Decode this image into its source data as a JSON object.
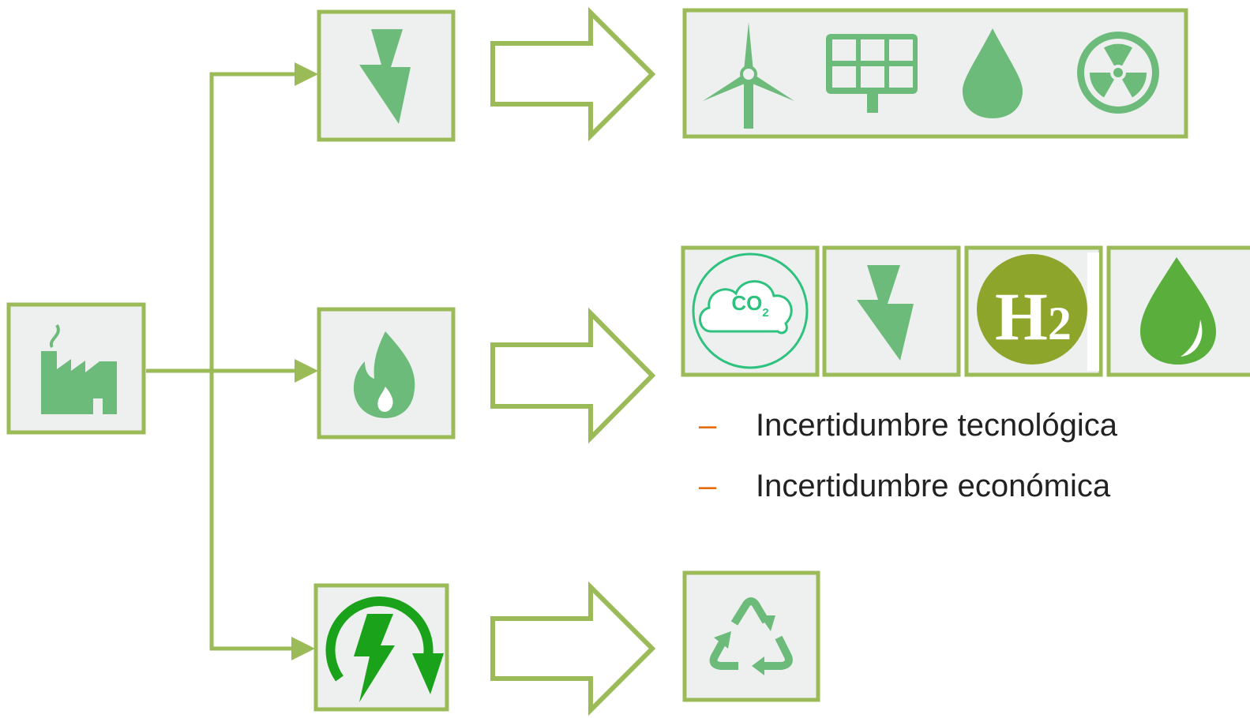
{
  "icons": {
    "co2": {
      "main": "CO",
      "sub": "2"
    },
    "h2": {
      "main": "H",
      "sub": "2"
    }
  },
  "bullets": [
    {
      "marker": "–",
      "text": "Incertidumbre tecnológica"
    },
    {
      "marker": "–",
      "text": "Incertidumbre económica"
    }
  ]
}
